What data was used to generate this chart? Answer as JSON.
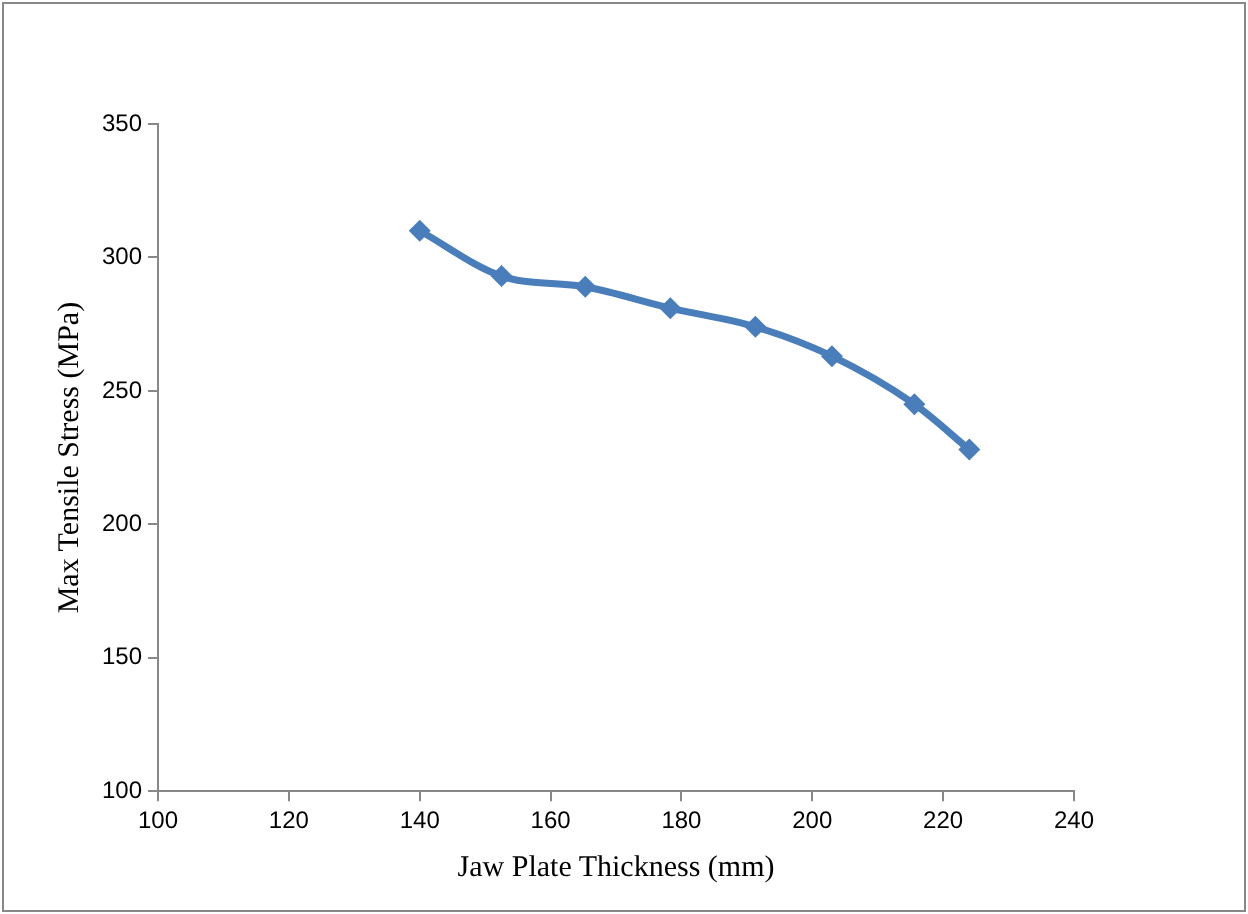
{
  "chart_data": {
    "type": "line",
    "xlabel": "Jaw Plate Thickness (mm)",
    "ylabel": "Max Tensile Stress (MPa)",
    "x": [
      140,
      152.5,
      165.3,
      178.3,
      191.3,
      203,
      215.6,
      224
    ],
    "series": [
      {
        "color": "#4a7ebb",
        "values": [
          310,
          293,
          289,
          281,
          274,
          263,
          245,
          228
        ]
      }
    ],
    "xlim": [
      100,
      240
    ],
    "xticks": [
      100,
      120,
      140,
      160,
      180,
      200,
      220,
      240
    ],
    "ylim": [
      100,
      350
    ],
    "yticks": [
      100,
      150,
      200,
      250,
      300,
      350
    ],
    "grid": false,
    "legend": false,
    "marker": "diamond",
    "line_style": "solid"
  }
}
